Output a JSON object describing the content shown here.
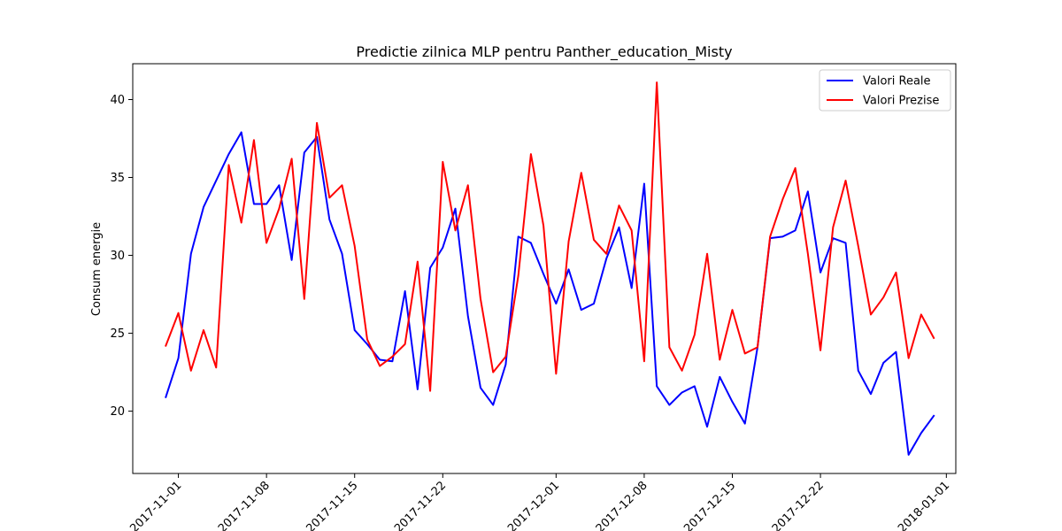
{
  "chart_data": {
    "type": "line",
    "title": "Predictie zilnica MLP pentru Panther_education_Misty",
    "xlabel": "",
    "ylabel": "Consum energie",
    "x_axis_type": "date",
    "xlim": [
      "2017-10-28T09:00",
      "2018-01-01T18:00"
    ],
    "ylim": [
      16.0,
      42.3
    ],
    "x_ticks": [
      "2017-11-01",
      "2017-11-08",
      "2017-11-15",
      "2017-11-22",
      "2017-12-01",
      "2017-12-08",
      "2017-12-15",
      "2017-12-22",
      "2018-01-01"
    ],
    "y_ticks": [
      20,
      25,
      30,
      35,
      40
    ],
    "x_tick_rotation": 45,
    "grid": false,
    "legend_position": "upper right",
    "dates": [
      "2017-10-31",
      "2017-11-01",
      "2017-11-02",
      "2017-11-03",
      "2017-11-04",
      "2017-11-05",
      "2017-11-06",
      "2017-11-07",
      "2017-11-08",
      "2017-11-09",
      "2017-11-10",
      "2017-11-11",
      "2017-11-12",
      "2017-11-13",
      "2017-11-14",
      "2017-11-15",
      "2017-11-16",
      "2017-11-17",
      "2017-11-18",
      "2017-11-19",
      "2017-11-20",
      "2017-11-21",
      "2017-11-22",
      "2017-11-23",
      "2017-11-24",
      "2017-11-25",
      "2017-11-26",
      "2017-11-27",
      "2017-11-28",
      "2017-11-29",
      "2017-11-30",
      "2017-12-01",
      "2017-12-02",
      "2017-12-03",
      "2017-12-04",
      "2017-12-05",
      "2017-12-06",
      "2017-12-07",
      "2017-12-08",
      "2017-12-09",
      "2017-12-10",
      "2017-12-11",
      "2017-12-12",
      "2017-12-13",
      "2017-12-14",
      "2017-12-15",
      "2017-12-16",
      "2017-12-17",
      "2017-12-18",
      "2017-12-19",
      "2017-12-20",
      "2017-12-21",
      "2017-12-22",
      "2017-12-23",
      "2017-12-24",
      "2017-12-25",
      "2017-12-26",
      "2017-12-27",
      "2017-12-28",
      "2017-12-29",
      "2017-12-30",
      "2017-12-31"
    ],
    "series": [
      {
        "name": "Valori Reale",
        "color": "#0000ff",
        "values": [
          20.9,
          23.4,
          30.1,
          33.1,
          34.8,
          36.5,
          37.9,
          33.3,
          33.3,
          34.5,
          29.7,
          36.6,
          37.6,
          32.3,
          30.1,
          25.2,
          24.3,
          23.3,
          23.2,
          27.7,
          21.4,
          29.2,
          30.5,
          33.0,
          26.1,
          21.5,
          20.4,
          23.0,
          31.2,
          30.8,
          28.8,
          26.9,
          29.1,
          26.5,
          26.9,
          29.8,
          31.8,
          27.9,
          34.6,
          21.6,
          20.4,
          21.2,
          21.6,
          19.0,
          22.2,
          20.6,
          19.2,
          24.1,
          31.1,
          31.2,
          31.6,
          34.1,
          28.9,
          31.1,
          30.8,
          22.6,
          21.1,
          23.1,
          23.8,
          17.2,
          18.6,
          19.7
        ]
      },
      {
        "name": "Valori Prezise",
        "color": "#ff0000",
        "values": [
          24.2,
          26.3,
          22.6,
          25.2,
          22.8,
          35.8,
          32.1,
          37.4,
          30.8,
          33.0,
          36.2,
          27.2,
          38.5,
          33.7,
          34.5,
          30.6,
          24.6,
          22.9,
          23.5,
          24.3,
          29.6,
          21.3,
          36.0,
          31.6,
          34.5,
          27.2,
          22.5,
          23.5,
          28.7,
          36.5,
          31.9,
          22.4,
          30.9,
          35.3,
          31.0,
          30.1,
          33.2,
          31.6,
          23.2,
          41.1,
          24.1,
          22.6,
          24.9,
          30.1,
          23.3,
          26.5,
          23.7,
          24.1,
          31.2,
          33.6,
          35.6,
          30.1,
          23.9,
          31.8,
          34.8,
          30.6,
          26.2,
          27.3,
          28.9,
          23.4,
          26.2,
          24.7
        ]
      }
    ]
  }
}
